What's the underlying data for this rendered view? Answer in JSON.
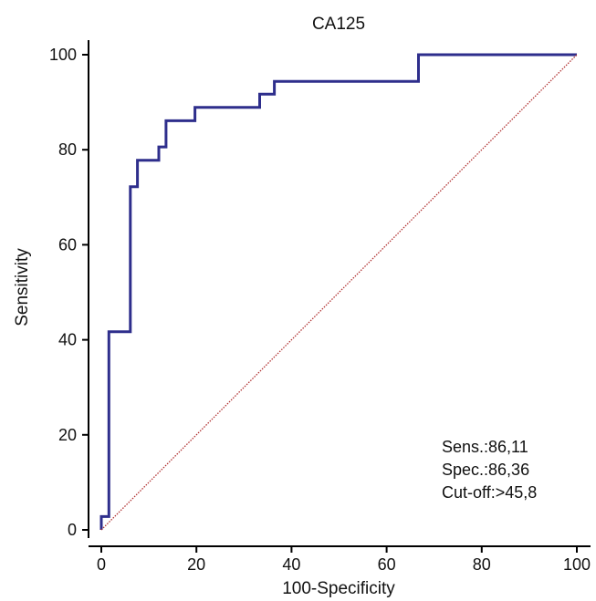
{
  "chart_data": {
    "type": "line",
    "title": "CA125",
    "xlabel": "100-Specificity",
    "ylabel": "Sensitivity",
    "xlim": [
      0,
      100
    ],
    "ylim": [
      0,
      100
    ],
    "xticks": [
      "0",
      "20",
      "40",
      "60",
      "80",
      "100"
    ],
    "yticks": [
      "0",
      "20",
      "40",
      "60",
      "80",
      "100"
    ],
    "grid": false,
    "legend": "none",
    "series": [
      {
        "kind": "roc_step",
        "color": "#2e2e8c",
        "points": [
          [
            0,
            0
          ],
          [
            0,
            2.8
          ],
          [
            1.6,
            2.8
          ],
          [
            1.6,
            41.7
          ],
          [
            6.1,
            41.7
          ],
          [
            6.1,
            72.2
          ],
          [
            7.6,
            72.2
          ],
          [
            7.6,
            77.8
          ],
          [
            12.1,
            77.8
          ],
          [
            12.1,
            80.6
          ],
          [
            13.6,
            80.6
          ],
          [
            13.6,
            86.1
          ],
          [
            19.7,
            86.1
          ],
          [
            19.7,
            88.9
          ],
          [
            33.3,
            88.9
          ],
          [
            33.3,
            91.7
          ],
          [
            36.4,
            91.7
          ],
          [
            36.4,
            94.4
          ],
          [
            66.7,
            94.4
          ],
          [
            66.7,
            100
          ],
          [
            100,
            100
          ]
        ]
      },
      {
        "kind": "reference_diagonal",
        "color": "#b03030",
        "points": [
          [
            0,
            0
          ],
          [
            100,
            100
          ]
        ]
      }
    ],
    "annotations": {
      "sens": "Sens.:86,11",
      "spec": "Spec.:86,36",
      "cutoff": "Cut-off:>45,8"
    }
  }
}
